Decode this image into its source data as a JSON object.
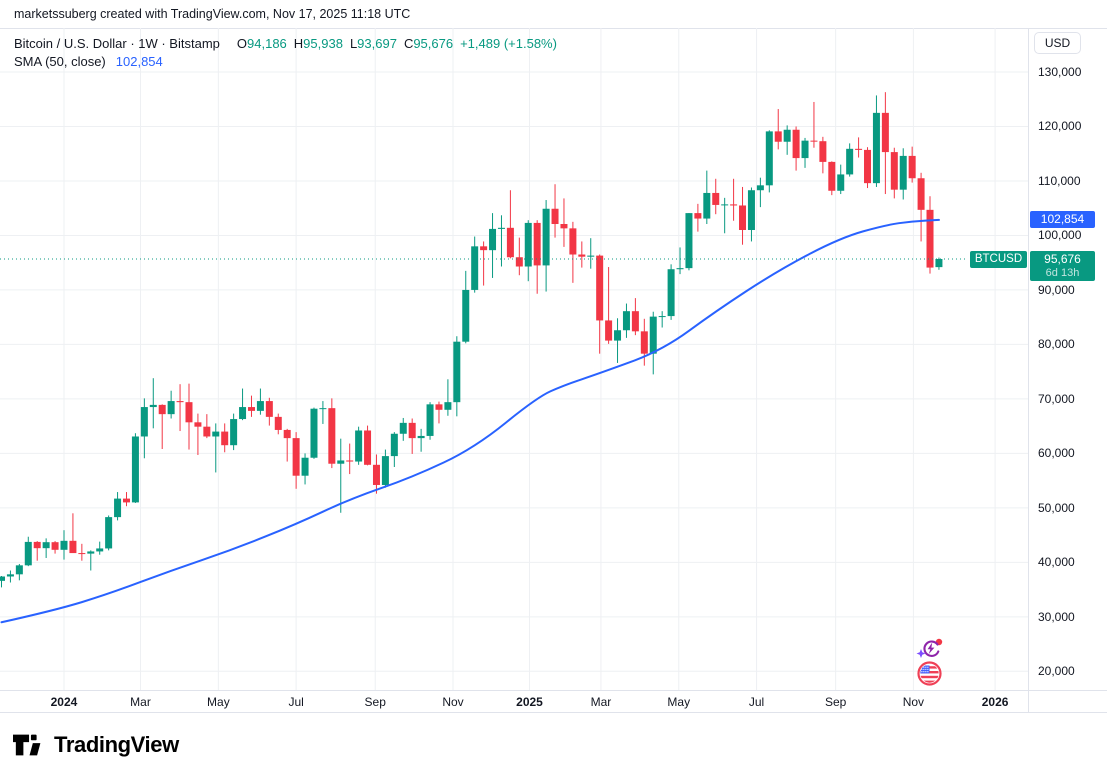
{
  "attribution": "marketssuberg created with TradingView.com, Nov 17, 2025 11:18 UTC",
  "legend": {
    "symbol": "Bitcoin / U.S. Dollar · 1W · Bitstamp",
    "ohlc": [
      {
        "k": "O",
        "v": "94,186"
      },
      {
        "k": "H",
        "v": "95,938"
      },
      {
        "k": "L",
        "v": "93,697"
      },
      {
        "k": "C",
        "v": "95,676"
      }
    ],
    "change": "+1,489 (+1.58%)",
    "sma_label": "SMA (50, close)",
    "sma_value": "102,854"
  },
  "axes": {
    "currency": "USD",
    "price_ticks": [
      {
        "v": 130000,
        "label": "130,000"
      },
      {
        "v": 120000,
        "label": "120,000"
      },
      {
        "v": 110000,
        "label": "110,000"
      },
      {
        "v": 100000,
        "label": "100,000"
      },
      {
        "v": 90000,
        "label": "90,000"
      },
      {
        "v": 80000,
        "label": "80,000"
      },
      {
        "v": 70000,
        "label": "70,000"
      },
      {
        "v": 60000,
        "label": "60,000"
      },
      {
        "v": 50000,
        "label": "50,000"
      },
      {
        "v": 40000,
        "label": "40,000"
      },
      {
        "v": 30000,
        "label": "30,000"
      },
      {
        "v": 20000,
        "label": "20,000"
      }
    ],
    "time_ticks": [
      {
        "label": "2024",
        "week": 7,
        "bold": true
      },
      {
        "label": "Mar",
        "week": 15.57,
        "bold": false
      },
      {
        "label": "May",
        "week": 24.29,
        "bold": false
      },
      {
        "label": "Jul",
        "week": 33,
        "bold": false
      },
      {
        "label": "Sep",
        "week": 41.86,
        "bold": false
      },
      {
        "label": "Nov",
        "week": 50.57,
        "bold": false
      },
      {
        "label": "2025",
        "week": 59.14,
        "bold": true
      },
      {
        "label": "Mar",
        "week": 67.14,
        "bold": false
      },
      {
        "label": "May",
        "week": 75.86,
        "bold": false
      },
      {
        "label": "Jul",
        "week": 84.57,
        "bold": false
      },
      {
        "label": "Sep",
        "week": 93.43,
        "bold": false
      },
      {
        "label": "Nov",
        "week": 102.14,
        "bold": false
      },
      {
        "label": "2026",
        "week": 111.29,
        "bold": true
      }
    ]
  },
  "badges": {
    "sma_value": "102,854",
    "sma_value_num": 102854,
    "price": "95,676",
    "price_num": 95676,
    "countdown": "6d 13h",
    "symbol": "BTCUSD"
  },
  "icons": {
    "ai_refresh": "ai-refresh-event-icon",
    "us_flag": "us-flag-economic-event-icon"
  },
  "logo": {
    "text": "TradingView"
  },
  "colors": {
    "up": "#089981",
    "down": "#f23645",
    "sma": "#2962ff",
    "accent_blue": "#2962ff",
    "text": "#131722",
    "grid": "#eef0f3",
    "border": "#e0e3eb",
    "dotted_price_line": "#089981"
  },
  "chart_data": {
    "type": "candlestick",
    "title": "Bitcoin / U.S. Dollar",
    "ticker": "BTCUSD",
    "interval": "1W",
    "exchange": "Bitstamp",
    "currency": "USD",
    "grid": true,
    "ylim": [
      20000,
      130000
    ],
    "x_start_week": "2023-11-13",
    "last_price": 95676,
    "overlays": [
      {
        "name": "SMA (50, close)",
        "color": "#2962ff",
        "last_value": 102854
      }
    ],
    "candles": [
      [
        36600,
        37500,
        35400,
        37400
      ],
      [
        37400,
        38500,
        36300,
        37800
      ],
      [
        37800,
        39700,
        36700,
        39450
      ],
      [
        39450,
        44700,
        39300,
        43750
      ],
      [
        43750,
        43900,
        40300,
        42600
      ],
      [
        42600,
        44400,
        40800,
        43700
      ],
      [
        43700,
        43900,
        41600,
        42300
      ],
      [
        42300,
        45900,
        40500,
        43950
      ],
      [
        43950,
        49000,
        41900,
        41700
      ],
      [
        41700,
        43400,
        40300,
        41600
      ],
      [
        41600,
        42200,
        38500,
        42000
      ],
      [
        42000,
        43800,
        41400,
        42550
      ],
      [
        42550,
        48600,
        42200,
        48300
      ],
      [
        48300,
        52900,
        47700,
        51700
      ],
      [
        51700,
        52900,
        50300,
        51000
      ],
      [
        51000,
        63700,
        50900,
        63100
      ],
      [
        63100,
        70100,
        59100,
        68500
      ],
      [
        68500,
        73800,
        64600,
        68900
      ],
      [
        68900,
        69000,
        60800,
        67200
      ],
      [
        67200,
        71500,
        66400,
        69600
      ],
      [
        69600,
        72700,
        64100,
        69400
      ],
      [
        69400,
        72800,
        60700,
        65700
      ],
      [
        65700,
        67300,
        59700,
        64900
      ],
      [
        64900,
        67200,
        62800,
        63100
      ],
      [
        63100,
        65500,
        56500,
        64000
      ],
      [
        64000,
        65500,
        60200,
        61500
      ],
      [
        61500,
        67300,
        60600,
        66300
      ],
      [
        66300,
        71900,
        66100,
        68500
      ],
      [
        68500,
        70600,
        66700,
        67800
      ],
      [
        67800,
        71900,
        67100,
        69600
      ],
      [
        69600,
        70200,
        65100,
        66700
      ],
      [
        66700,
        67300,
        63500,
        64300
      ],
      [
        64300,
        64500,
        58500,
        62800
      ],
      [
        62800,
        63900,
        53500,
        55900
      ],
      [
        55900,
        60000,
        54300,
        59200
      ],
      [
        59200,
        68400,
        59000,
        68200
      ],
      [
        68200,
        69600,
        65400,
        68300
      ],
      [
        68300,
        70100,
        57300,
        58100
      ],
      [
        58100,
        62700,
        49100,
        58700
      ],
      [
        58700,
        61800,
        56200,
        58500
      ],
      [
        58500,
        64900,
        57900,
        64200
      ],
      [
        64200,
        65100,
        57800,
        57900
      ],
      [
        57900,
        59800,
        52600,
        54200
      ],
      [
        54200,
        60700,
        53700,
        59500
      ],
      [
        59500,
        63900,
        57500,
        63600
      ],
      [
        63600,
        66500,
        62300,
        65600
      ],
      [
        65600,
        66400,
        59900,
        62800
      ],
      [
        62800,
        64500,
        60300,
        63200
      ],
      [
        63200,
        69400,
        62500,
        69000
      ],
      [
        69000,
        69500,
        65500,
        68000
      ],
      [
        68000,
        73600,
        66900,
        69400
      ],
      [
        69400,
        81500,
        66800,
        80500
      ],
      [
        80500,
        93500,
        80200,
        90000
      ],
      [
        90000,
        99800,
        89500,
        98000
      ],
      [
        98000,
        98900,
        90800,
        97300
      ],
      [
        97300,
        104100,
        92200,
        101200
      ],
      [
        101200,
        103700,
        94300,
        101400
      ],
      [
        101400,
        108300,
        95800,
        96000
      ],
      [
        96000,
        99600,
        92700,
        94300
      ],
      [
        94300,
        102800,
        91600,
        102300
      ],
      [
        102300,
        102800,
        89300,
        94500
      ],
      [
        94500,
        106500,
        89700,
        104900
      ],
      [
        104900,
        109400,
        99600,
        102100
      ],
      [
        102100,
        106800,
        97900,
        101300
      ],
      [
        101300,
        102500,
        91300,
        96500
      ],
      [
        96500,
        98900,
        94100,
        96100
      ],
      [
        96100,
        99500,
        93900,
        96300
      ],
      [
        96300,
        96500,
        78300,
        84400
      ],
      [
        84400,
        94200,
        80100,
        80700
      ],
      [
        80700,
        84800,
        76600,
        82600
      ],
      [
        82600,
        87500,
        81200,
        86100
      ],
      [
        86100,
        88500,
        81700,
        82400
      ],
      [
        82400,
        84700,
        76100,
        78300
      ],
      [
        78300,
        86000,
        74500,
        85100
      ],
      [
        85100,
        86100,
        83100,
        85200
      ],
      [
        85200,
        94700,
        84500,
        93800
      ],
      [
        93800,
        97800,
        92900,
        94000
      ],
      [
        94000,
        104100,
        93600,
        104100
      ],
      [
        104100,
        105800,
        100700,
        103100
      ],
      [
        103100,
        111900,
        102100,
        107800
      ],
      [
        107800,
        110400,
        103900,
        105600
      ],
      [
        105600,
        106900,
        100400,
        105700
      ],
      [
        105700,
        110400,
        102700,
        105500
      ],
      [
        105500,
        108900,
        98300,
        101000
      ],
      [
        101000,
        108800,
        98900,
        108300
      ],
      [
        108300,
        110600,
        105200,
        109200
      ],
      [
        109200,
        119300,
        107900,
        119100
      ],
      [
        119100,
        123200,
        115800,
        117200
      ],
      [
        117200,
        120200,
        114800,
        119400
      ],
      [
        119400,
        120000,
        111900,
        114200
      ],
      [
        114200,
        117900,
        112400,
        117400
      ],
      [
        117400,
        124500,
        116100,
        117300
      ],
      [
        117300,
        118100,
        111400,
        113500
      ],
      [
        113500,
        113600,
        107400,
        108200
      ],
      [
        108200,
        113000,
        107600,
        111200
      ],
      [
        111200,
        116900,
        110800,
        115900
      ],
      [
        115900,
        118000,
        114300,
        115700
      ],
      [
        115700,
        116200,
        108700,
        109600
      ],
      [
        109600,
        125700,
        108900,
        122500
      ],
      [
        122500,
        126300,
        107600,
        115300
      ],
      [
        115300,
        116100,
        106800,
        108400
      ],
      [
        108400,
        116000,
        106600,
        114600
      ],
      [
        114600,
        116300,
        109700,
        110500
      ],
      [
        110500,
        111500,
        98900,
        104700
      ],
      [
        104700,
        107200,
        93000,
        94100
      ],
      [
        94186,
        95938,
        93697,
        95676
      ]
    ],
    "sma_points": [
      [
        0,
        29000
      ],
      [
        6,
        31200
      ],
      [
        12,
        34200
      ],
      [
        19,
        38500
      ],
      [
        26,
        42400
      ],
      [
        33,
        47000
      ],
      [
        39,
        51600
      ],
      [
        46,
        55600
      ],
      [
        53,
        61000
      ],
      [
        60,
        70300
      ],
      [
        63,
        72500
      ],
      [
        67,
        74700
      ],
      [
        74,
        78900
      ],
      [
        80,
        86100
      ],
      [
        87,
        93600
      ],
      [
        94,
        99600
      ],
      [
        99,
        101900
      ],
      [
        102,
        102600
      ],
      [
        105,
        102854
      ]
    ]
  }
}
